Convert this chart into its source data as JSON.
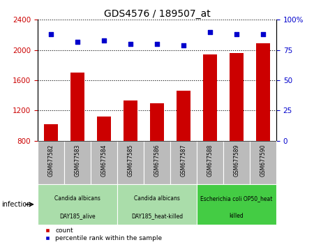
{
  "title": "GDS4576 / 189507_at",
  "samples": [
    "GSM677582",
    "GSM677583",
    "GSM677584",
    "GSM677585",
    "GSM677586",
    "GSM677587",
    "GSM677588",
    "GSM677589",
    "GSM677590"
  ],
  "counts": [
    1020,
    1700,
    1120,
    1330,
    1295,
    1460,
    1940,
    1960,
    2090
  ],
  "percentile_ranks": [
    88,
    82,
    83,
    80,
    80,
    79,
    90,
    88,
    88
  ],
  "ylim_left": [
    800,
    2400
  ],
  "ylim_right": [
    0,
    100
  ],
  "yticks_left": [
    800,
    1200,
    1600,
    2000,
    2400
  ],
  "yticks_right": [
    0,
    25,
    50,
    75,
    100
  ],
  "bar_color": "#cc0000",
  "dot_color": "#0000cc",
  "groups": [
    {
      "label": "Candida albicans\nDAY185_alive",
      "start": 0,
      "end": 3,
      "color": "#aaddaa"
    },
    {
      "label": "Candida albicans\nDAY185_heat-killed",
      "start": 3,
      "end": 6,
      "color": "#aaddaa"
    },
    {
      "label": "Escherichia coli OP50_heat\nkilled",
      "start": 6,
      "end": 9,
      "color": "#44cc44"
    }
  ],
  "infection_label": "infection",
  "legend_count_label": "count",
  "legend_percentile_label": "percentile rank within the sample",
  "tick_label_color_left": "#cc0000",
  "tick_label_color_right": "#0000cc",
  "bg_xtick": "#bbbbbb"
}
